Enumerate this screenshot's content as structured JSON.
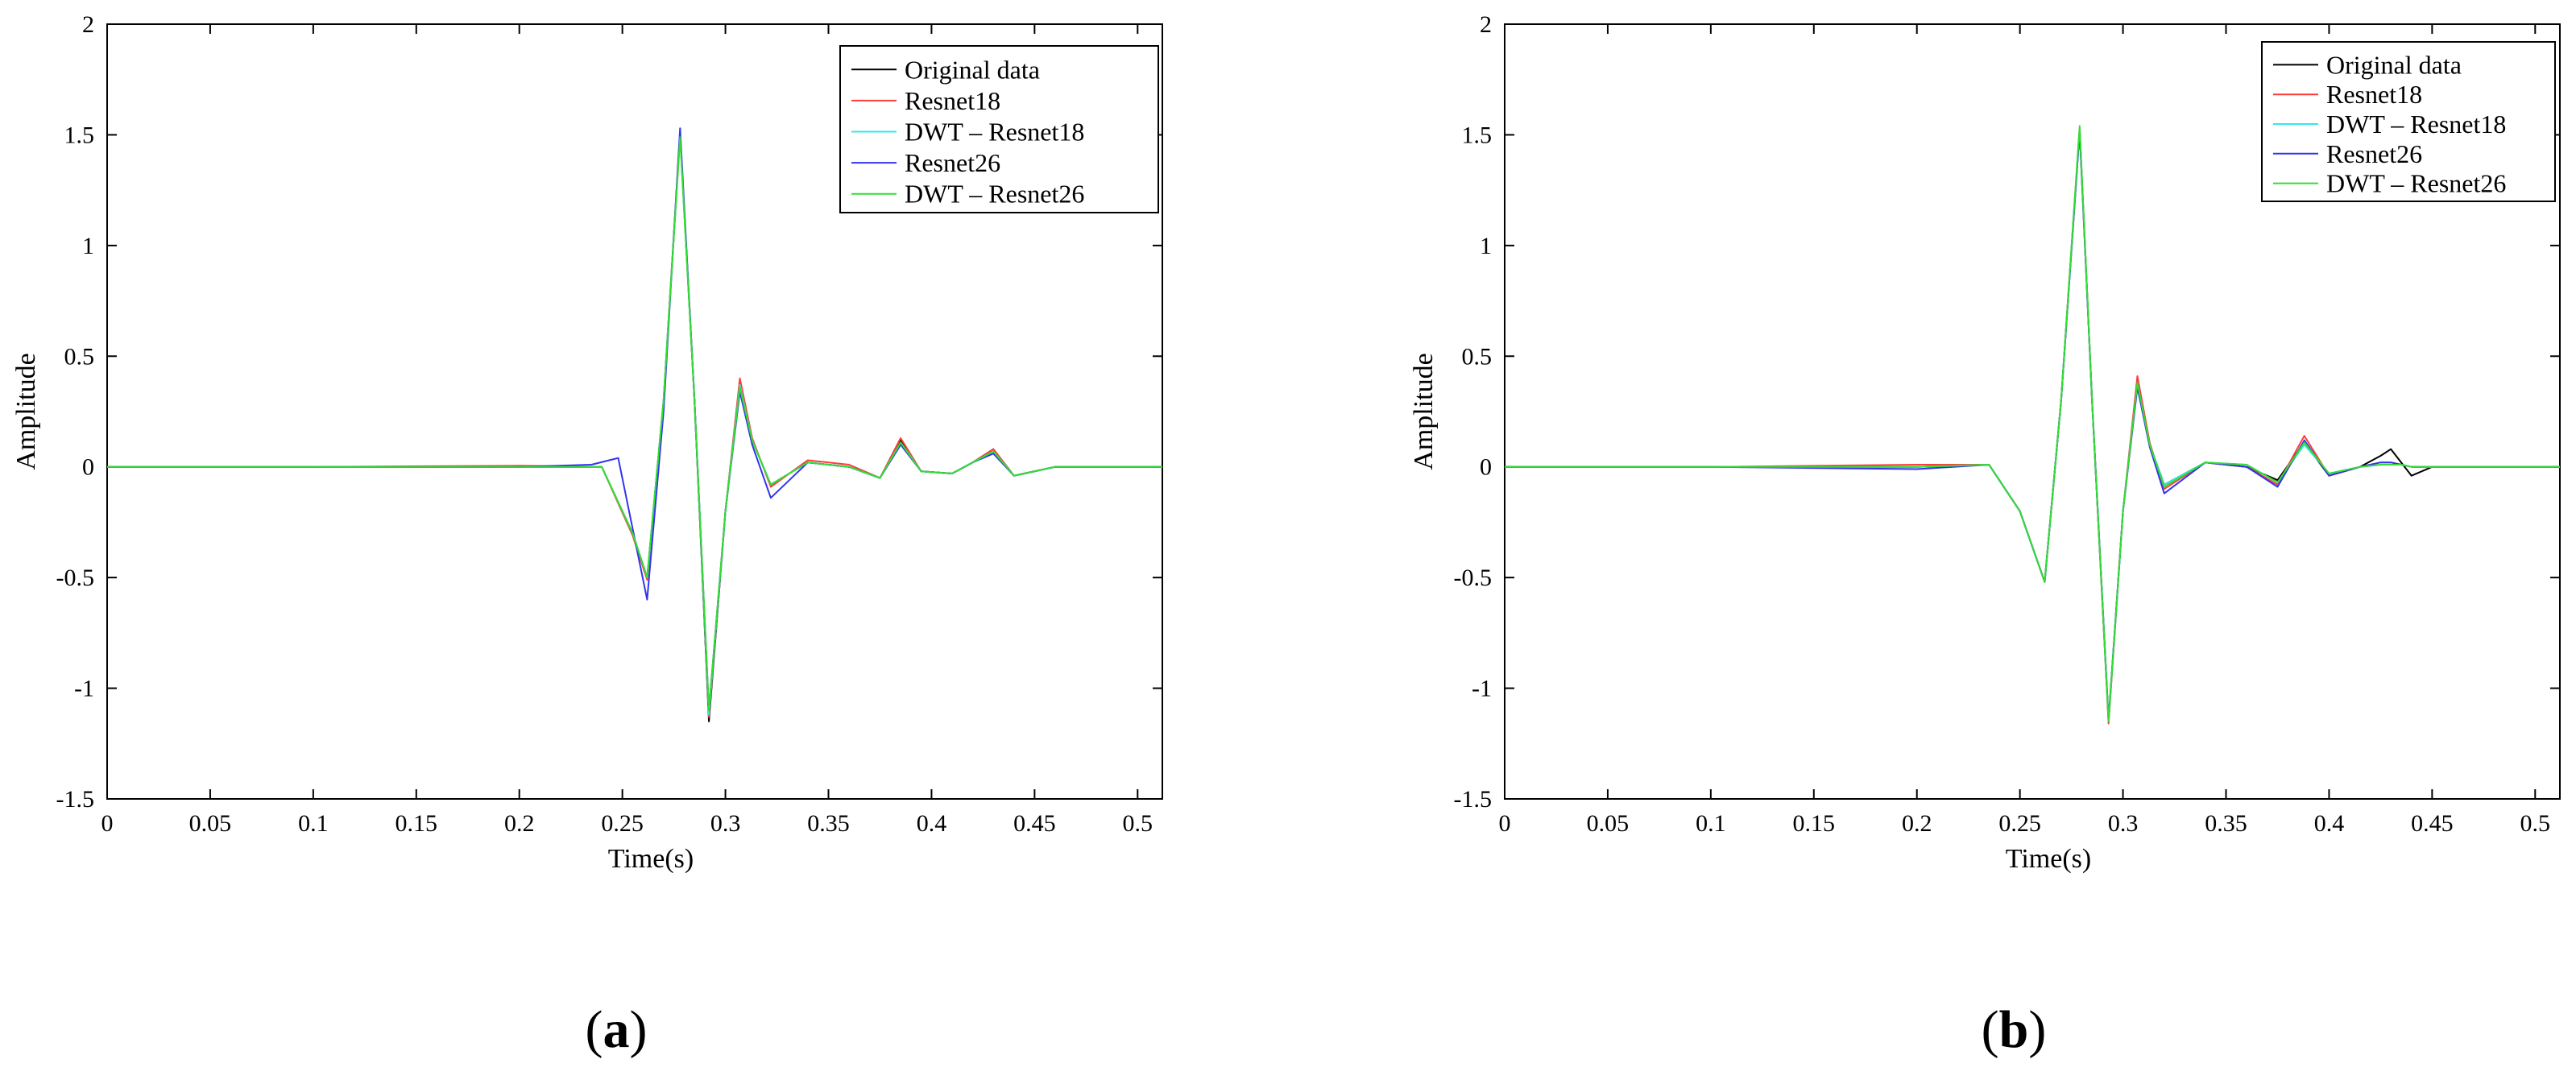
{
  "chart_data": [
    {
      "type": "line",
      "panel_label_open": "(",
      "panel_label": "a",
      "panel_label_close": ")",
      "xlabel": "Time(s)",
      "ylabel": "Amplitude",
      "xlim": [
        0,
        0.512
      ],
      "ylim": [
        -1.5,
        2
      ],
      "xticks": [
        0,
        0.05,
        0.1,
        0.15,
        0.2,
        0.25,
        0.3,
        0.35,
        0.4,
        0.45,
        0.5
      ],
      "xtick_labels": [
        "0",
        "0.05",
        "0.1",
        "0.15",
        "0.2",
        "0.25",
        "0.3",
        "0.35",
        "0.4",
        "0.45",
        "0.5"
      ],
      "yticks": [
        -1.5,
        -1,
        -0.5,
        0,
        0.5,
        1,
        1.5,
        2
      ],
      "ytick_labels": [
        "-1.5",
        "-1",
        "-0.5",
        "0",
        "0.5",
        "1",
        "1.5",
        "2"
      ],
      "legend_position": "top-right",
      "series": [
        {
          "name": "Original data",
          "color": "#000000",
          "x": [
            0,
            0.1,
            0.2,
            0.24,
            0.255,
            0.262,
            0.27,
            0.278,
            0.285,
            0.292,
            0.3,
            0.307,
            0.313,
            0.322,
            0.34,
            0.36,
            0.375,
            0.385,
            0.395,
            0.41,
            0.42,
            0.43,
            0.44,
            0.46,
            0.512
          ],
          "y": [
            0,
            0,
            0,
            0,
            -0.3,
            -0.5,
            0.3,
            1.5,
            0.3,
            -1.15,
            -0.2,
            0.38,
            0.12,
            -0.08,
            0.02,
            0,
            -0.05,
            0.12,
            -0.02,
            -0.03,
            0.02,
            0.08,
            -0.04,
            0,
            0
          ]
        },
        {
          "name": "Resnet18",
          "color": "#ff3b3b",
          "x": [
            0,
            0.1,
            0.2,
            0.24,
            0.255,
            0.262,
            0.27,
            0.278,
            0.285,
            0.292,
            0.3,
            0.307,
            0.313,
            0.322,
            0.34,
            0.36,
            0.375,
            0.385,
            0.395,
            0.41,
            0.42,
            0.43,
            0.44,
            0.46,
            0.512
          ],
          "y": [
            0,
            0,
            0.005,
            0,
            -0.31,
            -0.51,
            0.3,
            1.51,
            0.3,
            -1.13,
            -0.2,
            0.4,
            0.13,
            -0.09,
            0.03,
            0.01,
            -0.05,
            0.13,
            -0.02,
            -0.03,
            0.02,
            0.08,
            -0.04,
            0,
            0
          ]
        },
        {
          "name": "DWT – Resnet18",
          "color": "#33e8e8",
          "x": [
            0,
            0.1,
            0.2,
            0.24,
            0.255,
            0.262,
            0.27,
            0.278,
            0.285,
            0.292,
            0.3,
            0.307,
            0.313,
            0.322,
            0.34,
            0.36,
            0.375,
            0.385,
            0.395,
            0.41,
            0.42,
            0.43,
            0.44,
            0.46,
            0.512
          ],
          "y": [
            0,
            0,
            0,
            0,
            -0.3,
            -0.5,
            0.3,
            1.5,
            0.3,
            -1.12,
            -0.2,
            0.37,
            0.12,
            -0.08,
            0.02,
            0,
            -0.05,
            0.11,
            -0.02,
            -0.03,
            0.02,
            0.07,
            -0.04,
            0,
            0
          ]
        },
        {
          "name": "Resnet26",
          "color": "#3333ee",
          "x": [
            0,
            0.1,
            0.2,
            0.235,
            0.248,
            0.262,
            0.27,
            0.278,
            0.285,
            0.292,
            0.3,
            0.307,
            0.313,
            0.322,
            0.34,
            0.36,
            0.375,
            0.385,
            0.395,
            0.41,
            0.42,
            0.43,
            0.44,
            0.46,
            0.512
          ],
          "y": [
            0,
            0,
            0,
            0.01,
            0.04,
            -0.6,
            0.25,
            1.53,
            0.3,
            -1.1,
            -0.2,
            0.34,
            0.1,
            -0.14,
            0.02,
            0,
            -0.05,
            0.1,
            -0.02,
            -0.03,
            0.02,
            0.06,
            -0.04,
            0,
            0
          ]
        },
        {
          "name": "DWT – Resnet26",
          "color": "#33dd33",
          "x": [
            0,
            0.1,
            0.2,
            0.24,
            0.255,
            0.262,
            0.27,
            0.278,
            0.285,
            0.292,
            0.3,
            0.307,
            0.313,
            0.322,
            0.34,
            0.36,
            0.375,
            0.385,
            0.395,
            0.41,
            0.42,
            0.43,
            0.44,
            0.46,
            0.512
          ],
          "y": [
            0,
            0,
            0,
            0,
            -0.3,
            -0.5,
            0.3,
            1.49,
            0.3,
            -1.1,
            -0.2,
            0.36,
            0.12,
            -0.08,
            0.02,
            0,
            -0.05,
            0.11,
            -0.02,
            -0.03,
            0.02,
            0.07,
            -0.04,
            0,
            0
          ]
        }
      ]
    },
    {
      "type": "line",
      "panel_label_open": "(",
      "panel_label": "b",
      "panel_label_close": ")",
      "xlabel": "Time(s)",
      "ylabel": "Amplitude",
      "xlim": [
        0,
        0.512
      ],
      "ylim": [
        -1.5,
        2
      ],
      "xticks": [
        0,
        0.05,
        0.1,
        0.15,
        0.2,
        0.25,
        0.3,
        0.35,
        0.4,
        0.45,
        0.5
      ],
      "xtick_labels": [
        "0",
        "0.05",
        "0.1",
        "0.15",
        "0.2",
        "0.25",
        "0.3",
        "0.35",
        "0.4",
        "0.45",
        "0.5"
      ],
      "yticks": [
        -1.5,
        -1,
        -0.5,
        0,
        0.5,
        1,
        1.5,
        2
      ],
      "ytick_labels": [
        "-1.5",
        "-1",
        "-0.5",
        "0",
        "0.5",
        "1",
        "1.5",
        "2"
      ],
      "legend_position": "top-right",
      "series": [
        {
          "name": "Original data",
          "color": "#000000",
          "x": [
            0,
            0.1,
            0.2,
            0.235,
            0.25,
            0.262,
            0.27,
            0.279,
            0.285,
            0.293,
            0.3,
            0.307,
            0.313,
            0.32,
            0.34,
            0.36,
            0.375,
            0.388,
            0.4,
            0.415,
            0.425,
            0.43,
            0.435,
            0.44,
            0.45,
            0.46,
            0.512
          ],
          "y": [
            0,
            0,
            0,
            0.01,
            -0.2,
            -0.52,
            0.3,
            1.52,
            0.3,
            -1.15,
            -0.2,
            0.38,
            0.1,
            -0.08,
            0.02,
            0,
            -0.06,
            0.11,
            -0.04,
            0,
            0.05,
            0.08,
            0.02,
            -0.04,
            0,
            0,
            0
          ]
        },
        {
          "name": "Resnet18",
          "color": "#ff3b3b",
          "x": [
            0,
            0.1,
            0.2,
            0.235,
            0.25,
            0.262,
            0.27,
            0.279,
            0.285,
            0.293,
            0.3,
            0.307,
            0.313,
            0.32,
            0.34,
            0.36,
            0.375,
            0.388,
            0.4,
            0.415,
            0.425,
            0.43,
            0.435,
            0.44,
            0.45,
            0.46,
            0.512
          ],
          "y": [
            0,
            0,
            0.01,
            0.01,
            -0.2,
            -0.52,
            0.3,
            1.53,
            0.3,
            -1.16,
            -0.2,
            0.41,
            0.11,
            -0.1,
            0.02,
            0,
            -0.08,
            0.14,
            -0.04,
            0,
            0.02,
            0.02,
            0.01,
            0,
            0,
            0,
            0
          ]
        },
        {
          "name": "DWT – Resnet18",
          "color": "#33e8e8",
          "x": [
            0,
            0.1,
            0.2,
            0.235,
            0.25,
            0.262,
            0.27,
            0.279,
            0.285,
            0.293,
            0.3,
            0.307,
            0.313,
            0.32,
            0.34,
            0.36,
            0.375,
            0.388,
            0.4,
            0.415,
            0.425,
            0.43,
            0.435,
            0.44,
            0.45,
            0.46,
            0.512
          ],
          "y": [
            0,
            0,
            0,
            0.01,
            -0.2,
            -0.52,
            0.3,
            1.52,
            0.3,
            -1.15,
            -0.2,
            0.37,
            0.1,
            -0.08,
            0.02,
            0.01,
            -0.07,
            0.1,
            -0.03,
            0,
            0.01,
            0.01,
            0.01,
            0,
            0,
            0,
            0
          ]
        },
        {
          "name": "Resnet26",
          "color": "#3333ee",
          "x": [
            0,
            0.1,
            0.2,
            0.235,
            0.25,
            0.262,
            0.27,
            0.279,
            0.285,
            0.293,
            0.3,
            0.307,
            0.313,
            0.32,
            0.34,
            0.36,
            0.375,
            0.388,
            0.4,
            0.415,
            0.425,
            0.43,
            0.435,
            0.44,
            0.45,
            0.46,
            0.512
          ],
          "y": [
            0,
            0,
            -0.01,
            0.01,
            -0.2,
            -0.52,
            0.3,
            1.52,
            0.3,
            -1.14,
            -0.2,
            0.36,
            0.09,
            -0.12,
            0.02,
            0,
            -0.09,
            0.12,
            -0.04,
            0,
            0.02,
            0.02,
            0.01,
            0,
            0,
            0,
            0
          ]
        },
        {
          "name": "DWT – Resnet26",
          "color": "#33dd33",
          "x": [
            0,
            0.1,
            0.2,
            0.235,
            0.25,
            0.262,
            0.27,
            0.279,
            0.285,
            0.293,
            0.3,
            0.307,
            0.313,
            0.32,
            0.34,
            0.36,
            0.375,
            0.388,
            0.4,
            0.415,
            0.425,
            0.43,
            0.435,
            0.44,
            0.45,
            0.46,
            0.512
          ],
          "y": [
            0,
            0,
            0,
            0.01,
            -0.2,
            -0.52,
            0.3,
            1.54,
            0.3,
            -1.15,
            -0.2,
            0.38,
            0.1,
            -0.09,
            0.02,
            0.01,
            -0.07,
            0.11,
            -0.03,
            0,
            0.01,
            0.01,
            0.01,
            0,
            0,
            0,
            0
          ]
        }
      ]
    }
  ]
}
